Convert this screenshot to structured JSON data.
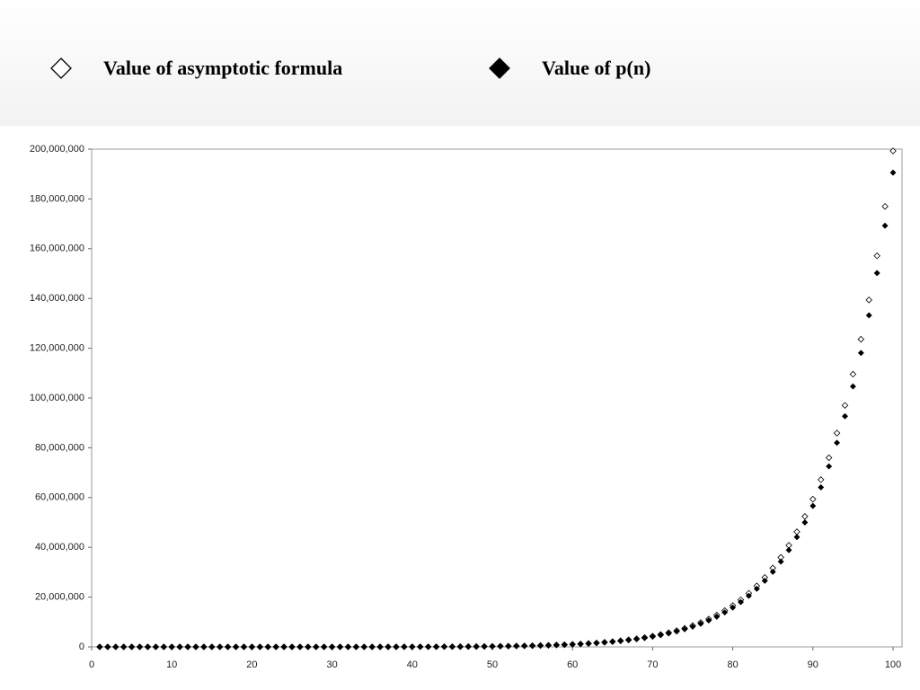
{
  "chart_data": {
    "type": "scatter",
    "x": [
      1,
      2,
      3,
      4,
      5,
      6,
      7,
      8,
      9,
      10,
      11,
      12,
      13,
      14,
      15,
      16,
      17,
      18,
      19,
      20,
      21,
      22,
      23,
      24,
      25,
      26,
      27,
      28,
      29,
      30,
      31,
      32,
      33,
      34,
      35,
      36,
      37,
      38,
      39,
      40,
      41,
      42,
      43,
      44,
      45,
      46,
      47,
      48,
      49,
      50,
      51,
      52,
      53,
      54,
      55,
      56,
      57,
      58,
      59,
      60,
      61,
      62,
      63,
      64,
      65,
      66,
      67,
      68,
      69,
      70,
      71,
      72,
      73,
      74,
      75,
      76,
      77,
      78,
      79,
      80,
      81,
      82,
      83,
      84,
      85,
      86,
      87,
      88,
      89,
      90,
      91,
      92,
      93,
      94,
      95,
      96,
      97,
      98,
      99,
      100
    ],
    "series": [
      {
        "name": "Value of asymptotic formula",
        "color": "#000000",
        "marker": "hollow-diamond",
        "values": [
          1.88,
          2.71,
          4.09,
          6.1,
          8.95,
          13.05,
          17.6,
          25.6,
          34.6,
          48.2,
          63.7,
          87.2,
          113.8,
          151.5,
          196.8,
          257.4,
          329.9,
          426.5,
          541.4,
          691,
          871,
          1100,
          1375,
          1722,
          2137,
          2654,
          3275,
          4039,
          4953,
          6071,
          7404,
          9024,
          10950,
          13275,
          16032,
          19347,
          23262,
          27943,
          33468,
          40038,
          47766,
          56923,
          67670,
          80355,
          95204,
          112673,
          133075,
          156993,
          184856,
          217419,
          255300,
          299442,
          350651,
          410174,
          479075,
          559011,
          651310,
          758133,
          881313,
          1023489,
          1187113,
          1375565,
          1592216,
          1841077,
          2126670,
          2454102,
          2829216,
          3258795,
          3749834,
          4311171,
          4951793,
          5682916,
          6516005,
          7465952,
          8546908,
          9775239,
          11173358,
          12759397,
          14560470,
          16603676,
          18919346,
          21541821,
          24510060,
          27868189,
          31663660,
          35952124,
          40793169,
          46256073,
          52415728,
          59363940,
          67183342,
          75986416,
          85897459,
          97034464,
          109559270,
          123618429,
          139413045,
          157120450,
          177000000,
          199280000
        ]
      },
      {
        "name": "Value of p(n)",
        "color": "#000000",
        "marker": "filled-diamond",
        "values": [
          1,
          2,
          3,
          5,
          7,
          11,
          15,
          22,
          30,
          42,
          56,
          77,
          101,
          135,
          176,
          231,
          297,
          385,
          490,
          627,
          792,
          1002,
          1255,
          1575,
          1958,
          2436,
          3010,
          3718,
          4565,
          5604,
          6842,
          8349,
          10143,
          12310,
          14883,
          17977,
          21637,
          26015,
          31185,
          37338,
          44583,
          53174,
          63261,
          75175,
          89134,
          105558,
          124754,
          147273,
          173525,
          204226,
          239943,
          281589,
          329931,
          386155,
          451276,
          526823,
          614154,
          715220,
          831820,
          966467,
          1121505,
          1300156,
          1505499,
          1741630,
          2012558,
          2323520,
          2679689,
          3087735,
          3554345,
          4087968,
          4697205,
          5392783,
          6185689,
          7089500,
          8118264,
          9289091,
          10619863,
          12132164,
          13848650,
          15796476,
          18004327,
          20506255,
          23338469,
          26543660,
          30167357,
          34262962,
          38887673,
          44108109,
          49995925,
          56634173,
          64112359,
          72533807,
          82010177,
          92669720,
          104651419,
          118114304,
          133230930,
          150198136,
          169229875,
          190569292
        ]
      }
    ],
    "xlim": [
      0,
      100
    ],
    "xticks": [
      0,
      10,
      20,
      30,
      40,
      50,
      60,
      70,
      80,
      90,
      100
    ],
    "ylim": [
      0,
      200000000
    ],
    "yticks": [
      0,
      {
        "value": 20000000,
        "label": "20,000,000"
      },
      {
        "value": 40000000,
        "label": "40,000,000"
      },
      {
        "value": 60000000,
        "label": "60,000,000"
      },
      {
        "value": 80000000,
        "label": "80,000,000"
      },
      {
        "value": 100000000,
        "label": "100,000,000"
      },
      {
        "value": 120000000,
        "label": "120,000,000"
      },
      {
        "value": 140000000,
        "label": "140,000,000"
      },
      {
        "value": 160000000,
        "label": "160,000,000"
      },
      {
        "value": 180000000,
        "label": "180,000,000"
      },
      {
        "value": 200000000,
        "label": "200,000,000"
      }
    ],
    "grid": false,
    "legend": "top"
  }
}
